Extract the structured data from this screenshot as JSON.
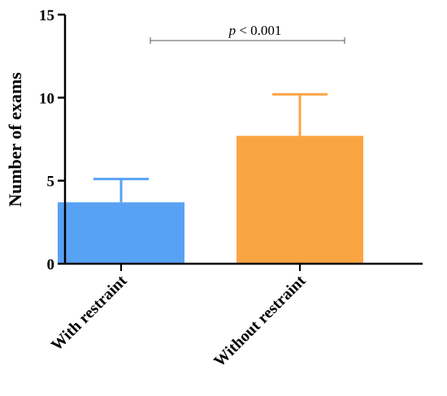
{
  "chart_data": {
    "type": "bar",
    "categories": [
      "With restraint",
      "Without restraint"
    ],
    "values": [
      3.7,
      7.7
    ],
    "error_upper": [
      5.1,
      10.2
    ],
    "colors": [
      "#58a2f4",
      "#fba442"
    ],
    "ylabel": "Number of exams",
    "xlabel": "",
    "ylim": [
      0,
      15
    ],
    "yticks": [
      "0",
      "5",
      "10",
      "15"
    ],
    "grid": false,
    "annotation": {
      "p_symbol": "p",
      "p_rest": " < 0.001"
    }
  }
}
